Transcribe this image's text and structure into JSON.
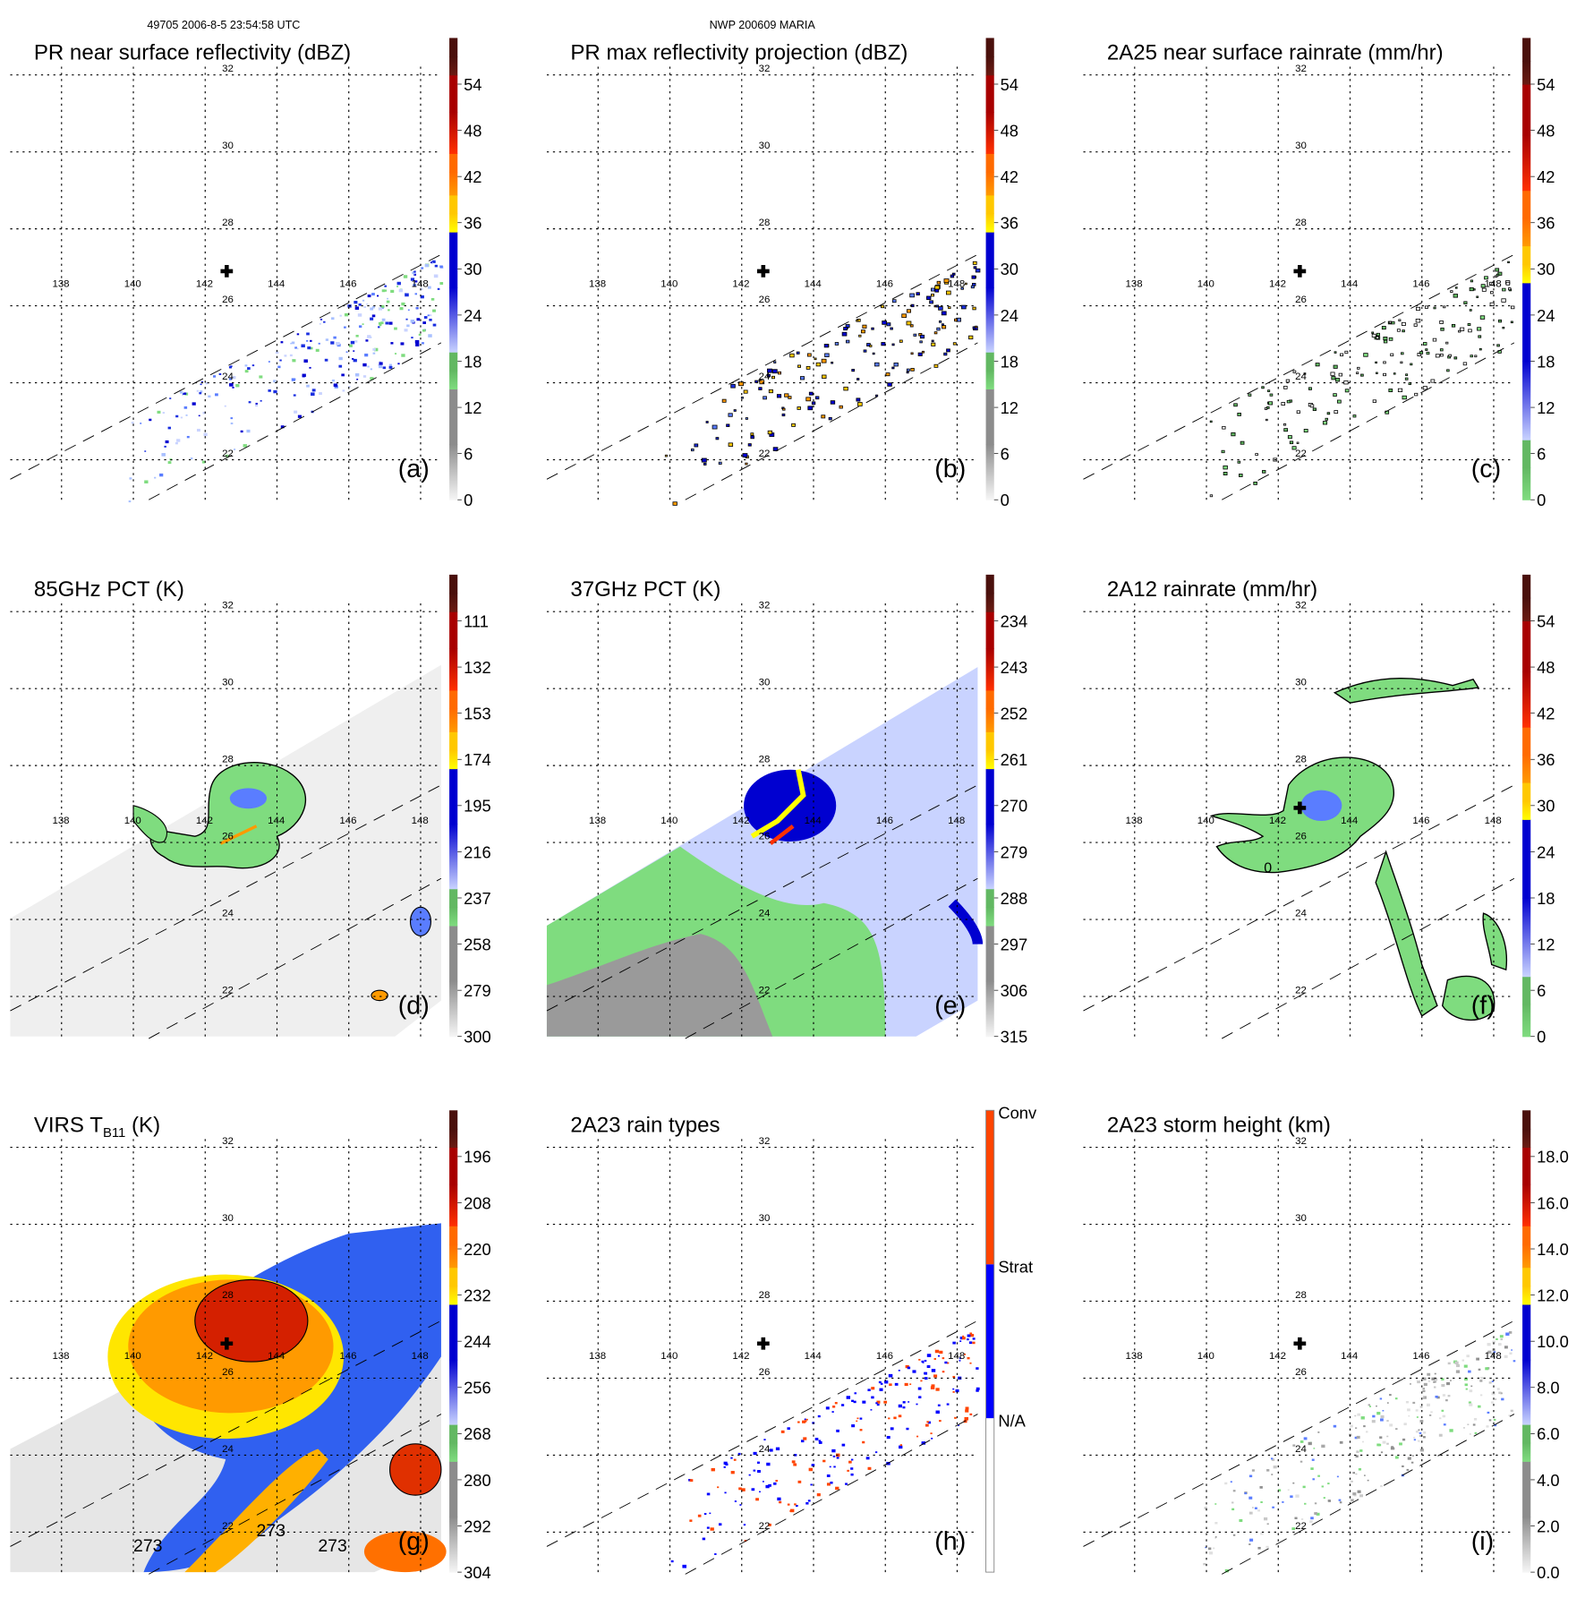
{
  "header": {
    "left": "49705 2006-8-5 23:54:58 UTC",
    "center": "NWP 200609 MARIA"
  },
  "map": {
    "lon_labels": [
      "138",
      "140",
      "142",
      "144",
      "146",
      "148"
    ],
    "lat_labels": [
      "32",
      "30",
      "28",
      "26",
      "24",
      "22"
    ]
  },
  "palettes": {
    "standard": [
      "#f6f6f6",
      "#8c8c8c",
      "#7fdc7f",
      "#62b862",
      "#c9d3ff",
      "#0000d0",
      "#ffff00",
      "#ffc800",
      "#ff9a00",
      "#ff6a00",
      "#ff3000",
      "#a80000",
      "#6a1a12",
      "#4a100c"
    ],
    "rain": [
      "#7fdc7f",
      "#62b862",
      "#c9d3ff",
      "#0000d0",
      "#ffff00",
      "#ffc800",
      "#ff9a00",
      "#ff6a00",
      "#ff3000",
      "#a80000",
      "#6a1a12",
      "#4a100c"
    ],
    "types": [
      "#ffffff",
      "#0000ff",
      "#ff4400"
    ]
  },
  "chart_data": [
    {
      "id": "a",
      "type": "heatmap",
      "title": "PR near surface reflectivity (dBZ)",
      "letter": "(a)",
      "palette": "standard",
      "colorbar_labels": [
        "0",
        "6",
        "12",
        "18",
        "24",
        "30",
        "36",
        "42",
        "48",
        "54"
      ],
      "clim": [
        0,
        60
      ],
      "storm_center": {
        "lon": 142.6,
        "lat": 26.9
      }
    },
    {
      "id": "b",
      "type": "heatmap",
      "title": "PR max reflectivity projection (dBZ)",
      "letter": "(b)",
      "palette": "standard",
      "colorbar_labels": [
        "0",
        "6",
        "12",
        "18",
        "24",
        "30",
        "36",
        "42",
        "48",
        "54"
      ],
      "clim": [
        0,
        60
      ],
      "storm_center": {
        "lon": 142.6,
        "lat": 26.9
      }
    },
    {
      "id": "c",
      "type": "heatmap",
      "title": "2A25 near surface rainrate (mm/hr)",
      "letter": "(c)",
      "palette": "rain",
      "colorbar_labels": [
        "0",
        "6",
        "12",
        "18",
        "24",
        "30",
        "36",
        "42",
        "48",
        "54"
      ],
      "clim": [
        0,
        60
      ],
      "storm_center": {
        "lon": 142.6,
        "lat": 26.9
      }
    },
    {
      "id": "d",
      "type": "heatmap",
      "title": "85GHz PCT (K)",
      "letter": "(d)",
      "palette": "standard",
      "colorbar_labels": [
        "300",
        "279",
        "258",
        "237",
        "216",
        "195",
        "174",
        "153",
        "132",
        "111"
      ],
      "clim": [
        300,
        90
      ]
    },
    {
      "id": "e",
      "type": "heatmap",
      "title": "37GHz PCT (K)",
      "letter": "(e)",
      "palette": "standard",
      "colorbar_labels": [
        "315",
        "306",
        "297",
        "288",
        "279",
        "270",
        "261",
        "252",
        "243",
        "234"
      ],
      "clim": [
        315,
        225
      ]
    },
    {
      "id": "f",
      "type": "heatmap",
      "title": "2A12 rainrate (mm/hr)",
      "letter": "(f)",
      "palette": "rain",
      "colorbar_labels": [
        "0",
        "6",
        "12",
        "18",
        "24",
        "30",
        "36",
        "42",
        "48",
        "54"
      ],
      "clim": [
        0,
        60
      ],
      "contour_labels": [
        "0"
      ]
    },
    {
      "id": "g",
      "type": "heatmap",
      "title": "VIRS T",
      "title_sub": "B11",
      "title_tail": " (K)",
      "letter": "(g)",
      "palette": "standard",
      "colorbar_labels": [
        "304",
        "292",
        "280",
        "268",
        "256",
        "244",
        "232",
        "220",
        "208",
        "196"
      ],
      "clim": [
        304,
        184
      ],
      "contour_labels": [
        "273",
        "273",
        "273"
      ]
    },
    {
      "id": "h",
      "type": "heatmap",
      "title": "2A23 rain types",
      "letter": "(h)",
      "palette": "types",
      "colorbar_labels": [
        "N/A",
        "Strat",
        "Conv"
      ],
      "storm_center": {
        "lon": 142.6,
        "lat": 26.9
      }
    },
    {
      "id": "i",
      "type": "heatmap",
      "title": "2A23 storm height (km)",
      "letter": "(i)",
      "palette": "standard",
      "colorbar_labels": [
        "0.0",
        "2.0",
        "4.0",
        "6.0",
        "8.0",
        "10.0",
        "12.0",
        "14.0",
        "16.0",
        "18.0"
      ],
      "clim": [
        0,
        20
      ],
      "storm_center": {
        "lon": 142.6,
        "lat": 26.9
      }
    }
  ]
}
